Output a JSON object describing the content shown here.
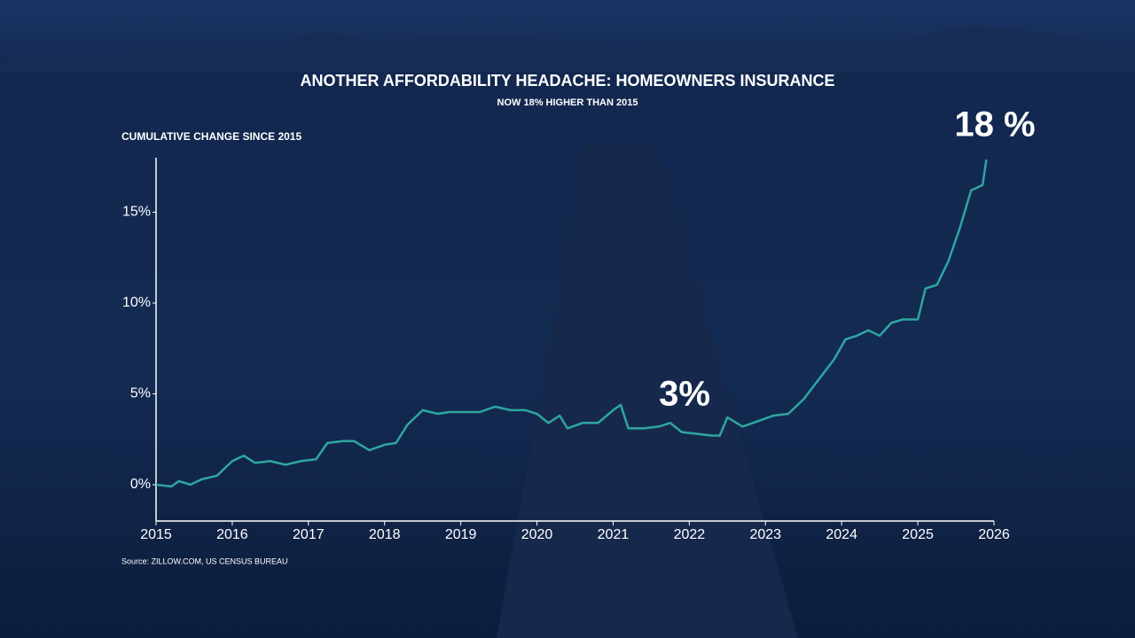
{
  "chart_data": {
    "type": "line",
    "title": "ANOTHER AFFORDABILITY HEADACHE: HOMEOWNERS INSURANCE",
    "subtitle": "NOW 18% HIGHER THAN 2015",
    "y_label": "CUMULATIVE CHANGE SINCE 2015",
    "source": "Source: ZILLOW.COM, US CENSUS BUREAU",
    "annotations": [
      "3%",
      "18 %"
    ],
    "x": [
      2015.0,
      2015.2,
      2015.3,
      2015.45,
      2015.6,
      2015.8,
      2016.0,
      2016.15,
      2016.3,
      2016.5,
      2016.7,
      2016.9,
      2017.1,
      2017.25,
      2017.45,
      2017.6,
      2017.8,
      2018.0,
      2018.15,
      2018.3,
      2018.5,
      2018.7,
      2018.85,
      2019.05,
      2019.25,
      2019.45,
      2019.65,
      2019.85,
      2020.0,
      2020.15,
      2020.3,
      2020.4,
      2020.6,
      2020.8,
      2021.0,
      2021.1,
      2021.2,
      2021.4,
      2021.6,
      2021.75,
      2021.9,
      2022.1,
      2022.3,
      2022.4,
      2022.5,
      2022.7,
      2022.9,
      2023.1,
      2023.3,
      2023.5,
      2023.7,
      2023.9,
      2024.05,
      2024.2,
      2024.35,
      2024.5,
      2024.65,
      2024.8,
      2025.0,
      2025.1,
      2025.25,
      2025.4,
      2025.55,
      2025.7,
      2025.85,
      2025.9
    ],
    "series": [
      {
        "name": "Homeowners insurance",
        "color": "#2ea6a0",
        "values": [
          0,
          -0.1,
          0.2,
          0,
          0.3,
          0.5,
          1.3,
          1.6,
          1.2,
          1.3,
          1.1,
          1.3,
          1.4,
          2.3,
          2.4,
          2.4,
          1.9,
          2.2,
          2.3,
          3.3,
          4.1,
          3.9,
          4.0,
          4.0,
          4.0,
          4.3,
          4.1,
          4.1,
          3.9,
          3.4,
          3.8,
          3.1,
          3.4,
          3.4,
          4.1,
          4.4,
          3.1,
          3.1,
          3.2,
          3.4,
          2.9,
          2.8,
          2.7,
          2.7,
          3.7,
          3.2,
          3.5,
          3.8,
          3.9,
          4.7,
          5.8,
          6.9,
          8.0,
          8.2,
          8.5,
          8.2,
          8.9,
          9.1,
          9.1,
          10.8,
          11.0,
          12.3,
          14.1,
          16.2,
          16.5,
          17.9
        ]
      }
    ],
    "xlim": [
      2015,
      2026
    ],
    "xticks": [
      2015,
      2016,
      2017,
      2018,
      2019,
      2020,
      2021,
      2022,
      2023,
      2024,
      2025,
      2026
    ],
    "ylim": [
      -2,
      18
    ],
    "yticks": [
      {
        "value": 0,
        "label": "0%"
      },
      {
        "value": 5,
        "label": "5%"
      },
      {
        "value": 10,
        "label": "10%"
      },
      {
        "value": 15,
        "label": "15%"
      }
    ],
    "grid": false
  }
}
